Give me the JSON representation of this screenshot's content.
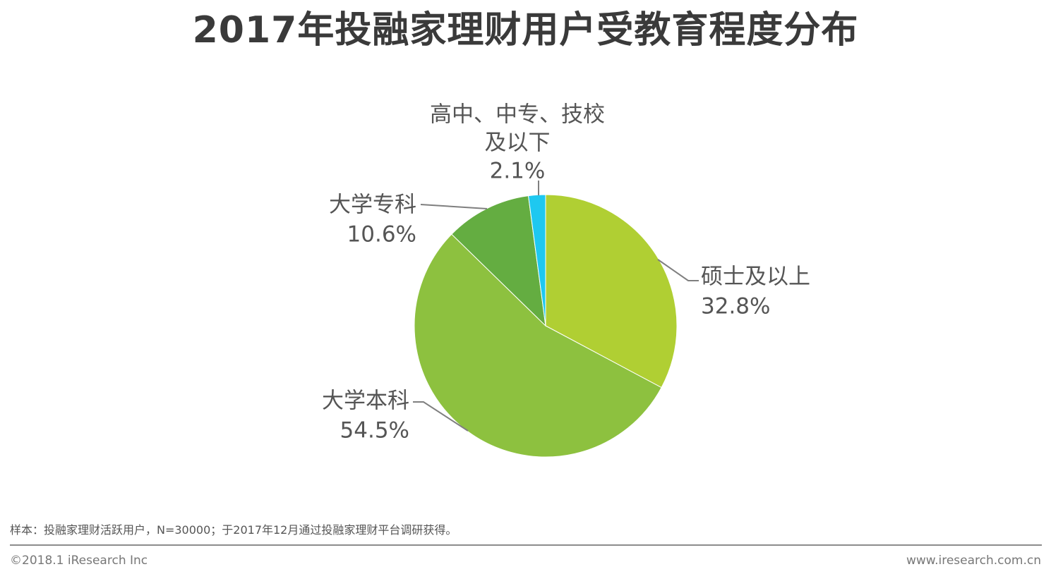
{
  "header": {
    "title": "2017年投融家理财用户受教育程度分布"
  },
  "chart_data": {
    "type": "pie",
    "title": "2017年投融家理财用户受教育程度分布",
    "start_angle_deg": 0,
    "direction": "clockwise",
    "slices": [
      {
        "label_lines": [
          "硕士及以上"
        ],
        "value": 32.8,
        "value_label": "32.8%",
        "color": "#b0cf33"
      },
      {
        "label_lines": [
          "大学本科"
        ],
        "value": 54.5,
        "value_label": "54.5%",
        "color": "#8dc13f"
      },
      {
        "label_lines": [
          "大学专科"
        ],
        "value": 10.6,
        "value_label": "10.6%",
        "color": "#64ad41"
      },
      {
        "label_lines": [
          "高中、中专、技校",
          "及以下"
        ],
        "value": 2.1,
        "value_label": "2.1%",
        "color": "#1ec8f0"
      }
    ]
  },
  "footer": {
    "note": "样本：投融家理财活跃用户，N=30000；于2017年12月通过投融家理财平台调研获得。",
    "copyright": "©2018.1 iResearch Inc",
    "website": "www.iresearch.com.cn"
  }
}
